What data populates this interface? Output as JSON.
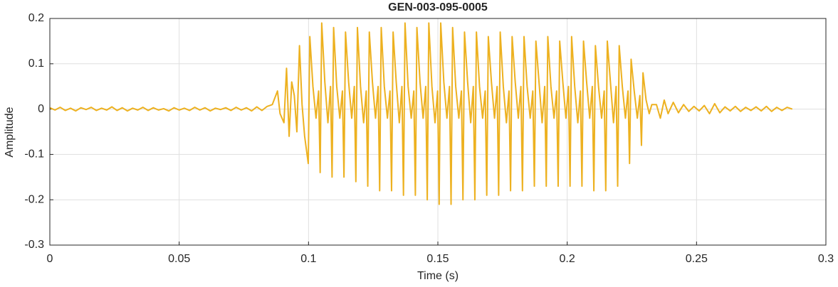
{
  "chart_data": {
    "type": "line",
    "title": "GEN-003-095-0005",
    "xlabel": "Time (s)",
    "ylabel": "Amplitude",
    "color": "#edb120",
    "grid": true,
    "xlim": [
      0,
      0.3
    ],
    "xticks": [
      0,
      0.05,
      0.1,
      0.15,
      0.2,
      0.25,
      0.3
    ],
    "ylim": [
      -0.3,
      0.2
    ],
    "yticks": [
      -0.3,
      -0.2,
      -0.1,
      0,
      0.1,
      0.2
    ],
    "x": [
      0,
      0.002,
      0.004,
      0.006,
      0.008,
      0.01,
      0.012,
      0.014,
      0.016,
      0.018,
      0.02,
      0.022,
      0.024,
      0.026,
      0.028,
      0.03,
      0.032,
      0.034,
      0.036,
      0.038,
      0.04,
      0.042,
      0.044,
      0.046,
      0.048,
      0.05,
      0.052,
      0.054,
      0.056,
      0.058,
      0.06,
      0.062,
      0.064,
      0.066,
      0.068,
      0.07,
      0.072,
      0.074,
      0.076,
      0.078,
      0.08,
      0.082,
      0.084,
      0.086,
      0.088,
      0.089,
      0.0905,
      0.0915,
      0.0925,
      0.0935,
      0.0945,
      0.0955,
      0.0965,
      0.0975,
      0.0985,
      0.0999,
      0.1005,
      0.1017,
      0.1029,
      0.1039,
      0.1045,
      0.1051,
      0.1063,
      0.1075,
      0.1085,
      0.1091,
      0.1097,
      0.1109,
      0.1121,
      0.1131,
      0.1137,
      0.1143,
      0.1155,
      0.1167,
      0.1177,
      0.1183,
      0.1189,
      0.1201,
      0.1213,
      0.1223,
      0.1229,
      0.1235,
      0.1247,
      0.1259,
      0.1269,
      0.1275,
      0.1281,
      0.1293,
      0.1305,
      0.1315,
      0.1321,
      0.1327,
      0.1339,
      0.1351,
      0.1361,
      0.1367,
      0.1373,
      0.1385,
      0.1397,
      0.1407,
      0.1413,
      0.1419,
      0.1431,
      0.1443,
      0.1453,
      0.1459,
      0.1465,
      0.1477,
      0.1489,
      0.1499,
      0.1505,
      0.1511,
      0.1523,
      0.1535,
      0.1545,
      0.1551,
      0.1557,
      0.1569,
      0.1581,
      0.1591,
      0.1597,
      0.1603,
      0.1615,
      0.1627,
      0.1637,
      0.1643,
      0.1649,
      0.1661,
      0.1673,
      0.1683,
      0.1689,
      0.1695,
      0.1707,
      0.1719,
      0.1729,
      0.1735,
      0.1741,
      0.1753,
      0.1765,
      0.1775,
      0.1781,
      0.1787,
      0.1799,
      0.1811,
      0.1821,
      0.1827,
      0.1833,
      0.1845,
      0.1857,
      0.1867,
      0.1873,
      0.1879,
      0.1891,
      0.1903,
      0.1913,
      0.1919,
      0.1925,
      0.1937,
      0.1949,
      0.1959,
      0.1965,
      0.1971,
      0.1983,
      0.1995,
      0.2005,
      0.2011,
      0.2017,
      0.2029,
      0.2041,
      0.2051,
      0.2057,
      0.2063,
      0.2075,
      0.2087,
      0.2097,
      0.2103,
      0.2109,
      0.2121,
      0.2133,
      0.2143,
      0.2149,
      0.2155,
      0.2167,
      0.2179,
      0.2189,
      0.2195,
      0.2201,
      0.2213,
      0.2225,
      0.2235,
      0.2241,
      0.2247,
      0.2259,
      0.2271,
      0.2281,
      0.2287,
      0.2293,
      0.2305,
      0.2317,
      0.2327,
      0.2345,
      0.236,
      0.2375,
      0.239,
      0.241,
      0.243,
      0.245,
      0.247,
      0.249,
      0.251,
      0.253,
      0.255,
      0.257,
      0.259,
      0.261,
      0.263,
      0.265,
      0.267,
      0.269,
      0.271,
      0.273,
      0.275,
      0.277,
      0.279,
      0.281,
      0.283,
      0.285,
      0.287
    ],
    "values": [
      0.003,
      -0.002,
      0.004,
      -0.003,
      0.002,
      -0.004,
      0.003,
      -0.001,
      0.004,
      -0.003,
      0.002,
      -0.002,
      0.005,
      -0.003,
      0.003,
      -0.004,
      0.002,
      -0.002,
      0.004,
      -0.003,
      0.003,
      -0.002,
      0.001,
      -0.004,
      0.003,
      -0.002,
      0.002,
      -0.003,
      0.004,
      -0.002,
      0.003,
      -0.004,
      0.002,
      -0.001,
      0.003,
      -0.003,
      0.004,
      -0.002,
      0.003,
      -0.004,
      0.005,
      -0.003,
      0.006,
      0.01,
      0.04,
      -0.01,
      -0.03,
      0.09,
      -0.06,
      0.06,
      0.03,
      -0.05,
      0.14,
      0.01,
      -0.06,
      -0.12,
      0.16,
      0.05,
      -0.02,
      0.04,
      -0.14,
      0.19,
      0.06,
      -0.03,
      0.05,
      -0.15,
      0.18,
      0.05,
      -0.02,
      0.04,
      -0.15,
      0.17,
      0.06,
      -0.02,
      0.05,
      -0.16,
      0.18,
      0.05,
      -0.03,
      0.04,
      -0.17,
      0.17,
      0.06,
      -0.02,
      0.05,
      -0.18,
      0.18,
      0.05,
      -0.02,
      0.04,
      -0.18,
      0.17,
      0.06,
      -0.03,
      0.05,
      -0.19,
      0.19,
      0.05,
      -0.02,
      0.04,
      -0.19,
      0.18,
      0.06,
      -0.02,
      0.05,
      -0.2,
      0.19,
      0.05,
      -0.03,
      0.04,
      -0.21,
      0.19,
      0.06,
      -0.02,
      0.05,
      -0.21,
      0.18,
      0.05,
      -0.02,
      0.04,
      -0.2,
      0.17,
      0.06,
      -0.03,
      0.05,
      -0.2,
      0.17,
      0.05,
      -0.02,
      0.04,
      -0.19,
      0.16,
      0.06,
      -0.02,
      0.05,
      -0.19,
      0.17,
      0.05,
      -0.03,
      0.04,
      -0.18,
      0.16,
      0.06,
      -0.02,
      0.05,
      -0.18,
      0.16,
      0.05,
      -0.02,
      0.04,
      -0.17,
      0.15,
      0.06,
      -0.03,
      0.05,
      -0.17,
      0.16,
      0.05,
      -0.02,
      0.04,
      -0.17,
      0.15,
      0.06,
      -0.02,
      0.05,
      -0.17,
      0.16,
      0.05,
      -0.03,
      0.04,
      -0.17,
      0.15,
      0.06,
      -0.02,
      0.05,
      -0.18,
      0.14,
      0.05,
      -0.02,
      0.04,
      -0.18,
      0.15,
      0.06,
      -0.03,
      0.05,
      -0.17,
      0.14,
      0.05,
      -0.02,
      0.04,
      -0.12,
      0.11,
      0.04,
      -0.02,
      0.03,
      -0.08,
      0.08,
      0.02,
      -0.01,
      0.01,
      0.01,
      -0.02,
      0.02,
      -0.01,
      0.015,
      -0.008,
      0.01,
      -0.005,
      0.006,
      -0.004,
      0.008,
      -0.01,
      0.012,
      -0.008,
      0.005,
      -0.004,
      0.006,
      -0.005,
      0.004,
      -0.003,
      0.005,
      -0.004,
      0.006,
      -0.005,
      0.004,
      -0.003,
      0.004,
      0
    ]
  }
}
